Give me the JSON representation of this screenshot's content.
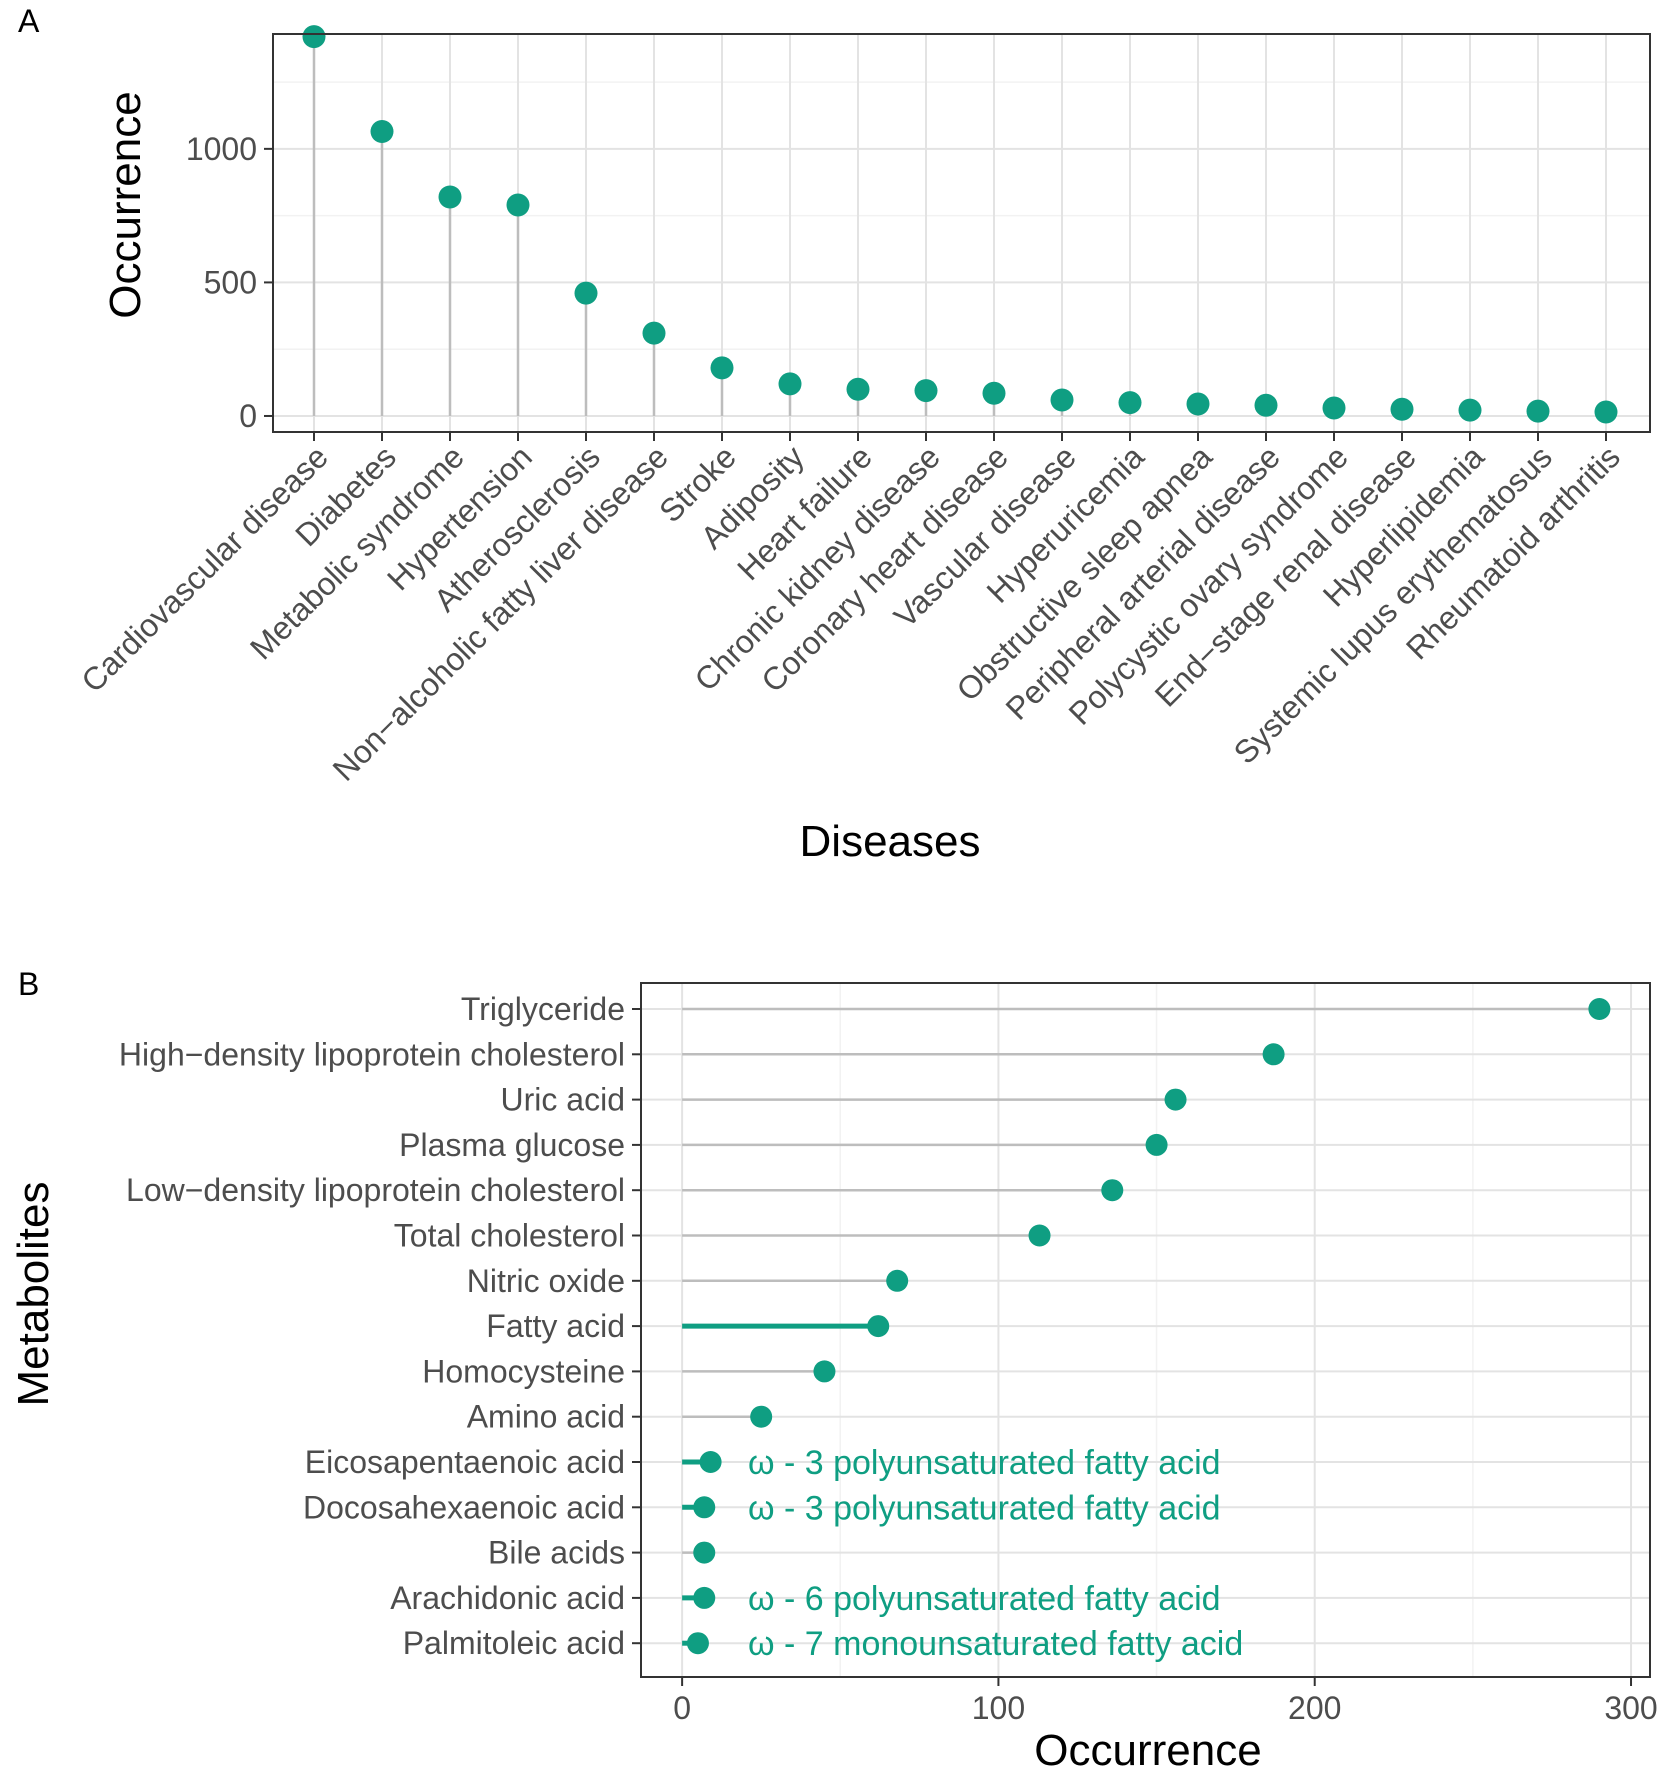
{
  "chart_data": [
    {
      "panel_label": "A",
      "type": "lollipop",
      "orientation": "vertical",
      "xlabel": "Diseases",
      "ylabel": "Occurrence",
      "ylim": [
        -60,
        1430
      ],
      "yticks": [
        0,
        500,
        1000
      ],
      "grid": true,
      "categories": [
        "Cardiovascular disease",
        "Diabetes",
        "Metabolic syndrome",
        "Hypertension",
        "Atherosclerosis",
        "Non−alcoholic fatty liver disease",
        "Stroke",
        "Adiposity",
        "Heart failure",
        "Chronic kidney disease",
        "Coronary heart disease",
        "Vascular disease",
        "Hyperuricemia",
        "Obstructive sleep apnea",
        "Peripheral arterial disease",
        "Polycystic ovary syndrome",
        "End−stage renal disease",
        "Hyperlipidemia",
        "Systemic lupus erythematosus",
        "Rheumatoid arthritis"
      ],
      "values": [
        1420,
        1065,
        820,
        790,
        460,
        310,
        180,
        120,
        100,
        95,
        85,
        60,
        50,
        45,
        40,
        30,
        25,
        22,
        18,
        15
      ]
    },
    {
      "panel_label": "B",
      "type": "lollipop",
      "orientation": "horizontal",
      "xlabel": "Occurrence",
      "ylabel": "Metabolites",
      "xlim": [
        -13,
        306
      ],
      "xticks": [
        0,
        100,
        200,
        300
      ],
      "grid": true,
      "categories": [
        "Triglyceride",
        "High−density lipoprotein cholesterol",
        "Uric acid",
        "Plasma glucose",
        "Low−density lipoprotein cholesterol",
        "Total cholesterol",
        "Nitric oxide",
        "Fatty acid",
        "Homocysteine",
        "Amino acid",
        "Eicosapentaenoic acid",
        "Docosahexaenoic acid",
        "Bile acids",
        "Arachidonic acid",
        "Palmitoleic acid"
      ],
      "values": [
        290,
        187,
        156,
        150,
        136,
        113,
        68,
        62,
        45,
        25,
        9,
        7,
        7,
        7,
        5
      ],
      "highlighted": [
        "Fatty acid",
        "Eicosapentaenoic acid",
        "Docosahexaenoic acid",
        "Arachidonic acid",
        "Palmitoleic acid"
      ],
      "annotations": [
        {
          "category": "Eicosapentaenoic acid",
          "text": "ω - 3 polyunsaturated fatty acid"
        },
        {
          "category": "Docosahexaenoic acid",
          "text": "ω - 3 polyunsaturated fatty acid"
        },
        {
          "category": "Arachidonic acid",
          "text": "ω - 6 polyunsaturated fatty acid"
        },
        {
          "category": "Palmitoleic acid",
          "text": "ω - 7 monounsaturated fatty acid"
        }
      ]
    }
  ],
  "colors": {
    "point": "#0f9e82",
    "stem": "#bdbdbd",
    "grid_major": "#e3e3e3",
    "grid_minor": "#f2f2f2",
    "border": "#333333",
    "tick_text": "#4d4d4d"
  }
}
